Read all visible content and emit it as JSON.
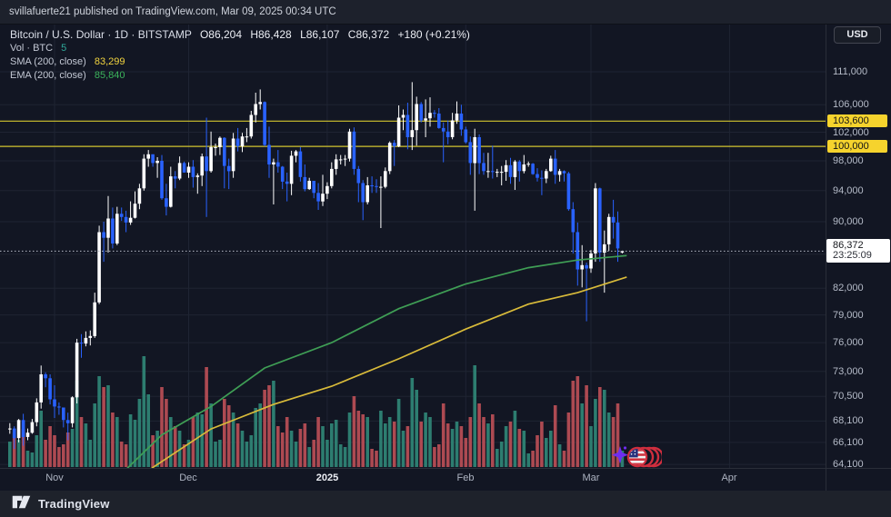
{
  "published_bar": {
    "text": "svillafuerte21 published on TradingView.com, Mar 09, 2025 00:34 UTC"
  },
  "legend": {
    "symbol_line": "Bitcoin / U.S. Dollar · 1D · BITSTAMP",
    "ohlc": {
      "open": "O86,204",
      "high": "H86,428",
      "low": "L86,107",
      "close": "C86,372",
      "change": "+180 (+0.21%)"
    },
    "volume": {
      "label": "Vol · BTC",
      "value": "5"
    },
    "sma": {
      "label": "SMA (200, close)",
      "value": "83,299"
    },
    "ema": {
      "label": "EMA (200, close)",
      "value": "85,840"
    }
  },
  "axis": {
    "currency_button": "USD"
  },
  "footer": {
    "brand": "TradingView"
  },
  "sticker": {
    "name": "us-flag-rolling-sticker"
  },
  "colors": {
    "background": "#121623",
    "grid": "#1f2433",
    "axis_border": "#2a2e39",
    "candle_up": "#ffffff",
    "candle_down": "#2962ff",
    "volume_up": "#2d7d70",
    "volume_down": "#ad4a52",
    "sma_line": "#d9bb3a",
    "ema_line": "#3f9e55",
    "level_line": "#d2c42f",
    "level_label_bg": "#f6d32d",
    "last_price_line": "#b8bcc8",
    "last_price_label_bg": "#ffffff"
  },
  "chart_data": {
    "type": "candlestick",
    "title": "Bitcoin / U.S. Dollar",
    "exchange": "BITSTAMP",
    "interval": "1D",
    "log_scale": true,
    "visible_price_range": [
      63800,
      118600
    ],
    "start_date": "2024-10-22",
    "end_date": "2025-03-08",
    "y_ticks": [
      {
        "label": "111,000",
        "price": 111000,
        "style": "normal"
      },
      {
        "label": "106,000",
        "price": 106000,
        "style": "normal"
      },
      {
        "label": "103,600",
        "price": 103600,
        "style": "level"
      },
      {
        "label": "102,000",
        "price": 102000,
        "style": "normal"
      },
      {
        "label": "100,000",
        "price": 100000,
        "style": "level"
      },
      {
        "label": "98,000",
        "price": 98000,
        "style": "normal"
      },
      {
        "label": "94,000",
        "price": 94000,
        "style": "normal"
      },
      {
        "label": "90,000",
        "price": 90000,
        "style": "normal"
      },
      {
        "label": "82,000",
        "price": 82000,
        "style": "normal"
      },
      {
        "label": "79,000",
        "price": 79000,
        "style": "normal"
      },
      {
        "label": "76,000",
        "price": 76000,
        "style": "normal"
      },
      {
        "label": "73,000",
        "price": 73000,
        "style": "normal"
      },
      {
        "label": "70,500",
        "price": 70500,
        "style": "normal"
      },
      {
        "label": "68,100",
        "price": 68100,
        "style": "normal"
      },
      {
        "label": "66,100",
        "price": 66100,
        "style": "normal"
      },
      {
        "label": "64,100",
        "price": 64100,
        "style": "normal"
      }
    ],
    "gridline_prices": [
      111000,
      106000,
      102000,
      98000,
      94000,
      90000,
      86000,
      82000,
      79000,
      76000,
      73000,
      70500,
      68100,
      66100,
      64100
    ],
    "x_months": [
      {
        "label": "Nov",
        "day_index": 10,
        "bold": false
      },
      {
        "label": "Dec",
        "day_index": 40,
        "bold": false
      },
      {
        "label": "2025",
        "day_index": 71,
        "bold": true
      },
      {
        "label": "Feb",
        "day_index": 102,
        "bold": false
      },
      {
        "label": "Mar",
        "day_index": 130,
        "bold": false
      },
      {
        "label": "Apr",
        "day_index": 161,
        "bold": false
      }
    ],
    "levels": [
      {
        "price": 103600,
        "label": "103,600"
      },
      {
        "price": 100000,
        "label": "100,000"
      }
    ],
    "last_price": {
      "price": 86372,
      "label": "86,372",
      "countdown": "23:25:09"
    },
    "sma_points": [
      [
        25,
        62000
      ],
      [
        45,
        67350
      ],
      [
        59,
        69700
      ],
      [
        72,
        71500
      ],
      [
        87,
        74300
      ],
      [
        102,
        77450
      ],
      [
        116,
        80200
      ],
      [
        127,
        81500
      ],
      [
        138,
        83299
      ]
    ],
    "ema_points": [
      [
        23,
        62500
      ],
      [
        34,
        66800
      ],
      [
        45,
        69500
      ],
      [
        57,
        73350
      ],
      [
        72,
        76000
      ],
      [
        87,
        79700
      ],
      [
        102,
        82500
      ],
      [
        116,
        84400
      ],
      [
        127,
        85300
      ],
      [
        138,
        85840
      ]
    ],
    "candles": [
      [
        67400,
        67900,
        66900,
        67400,
        28
      ],
      [
        67400,
        67600,
        65500,
        66500,
        38
      ],
      [
        66500,
        68300,
        66100,
        68200,
        30
      ],
      [
        68200,
        68800,
        65800,
        66600,
        42
      ],
      [
        66600,
        67400,
        66300,
        67000,
        18
      ],
      [
        67000,
        68300,
        66900,
        68000,
        16
      ],
      [
        68000,
        70300,
        67600,
        69900,
        35
      ],
      [
        69900,
        73600,
        69300,
        72700,
        62
      ],
      [
        72700,
        72900,
        71400,
        72300,
        30
      ],
      [
        72300,
        72700,
        69700,
        70200,
        45
      ],
      [
        70200,
        71600,
        68400,
        69500,
        35
      ],
      [
        69500,
        69900,
        68700,
        69400,
        22
      ],
      [
        69400,
        69400,
        67500,
        68200,
        25
      ],
      [
        68200,
        68900,
        66300,
        67900,
        38
      ],
      [
        67900,
        70500,
        67500,
        70400,
        42
      ],
      [
        70400,
        76400,
        69800,
        76000,
        95
      ],
      [
        76000,
        76900,
        74400,
        75900,
        55
      ],
      [
        75900,
        77200,
        75600,
        76500,
        48
      ],
      [
        76500,
        77300,
        75700,
        76700,
        30
      ],
      [
        76700,
        81500,
        76500,
        80400,
        70
      ],
      [
        80400,
        89500,
        80200,
        88700,
        100
      ],
      [
        88700,
        90000,
        85100,
        88000,
        88
      ],
      [
        88000,
        93300,
        86200,
        90400,
        90
      ],
      [
        90400,
        91800,
        86700,
        87300,
        60
      ],
      [
        87300,
        91900,
        87100,
        91000,
        55
      ],
      [
        91000,
        91800,
        90100,
        90600,
        28
      ],
      [
        90600,
        91400,
        88700,
        89900,
        25
      ],
      [
        89900,
        92600,
        89600,
        90500,
        58
      ],
      [
        90500,
        93900,
        90400,
        92300,
        52
      ],
      [
        92300,
        94900,
        91600,
        94300,
        75
      ],
      [
        94300,
        98900,
        94000,
        98300,
        122
      ],
      [
        98300,
        99500,
        97200,
        98900,
        80
      ],
      [
        98900,
        98900,
        97200,
        97700,
        35
      ],
      [
        97700,
        98500,
        95700,
        98000,
        40
      ],
      [
        98000,
        98800,
        92800,
        93000,
        88
      ],
      [
        93000,
        94900,
        90800,
        91900,
        75
      ],
      [
        91900,
        97200,
        91800,
        95900,
        55
      ],
      [
        95900,
        96600,
        94300,
        95600,
        45
      ],
      [
        95600,
        98600,
        95400,
        97700,
        40
      ],
      [
        97700,
        97900,
        96400,
        96400,
        25
      ],
      [
        96400,
        97800,
        95700,
        97200,
        30
      ],
      [
        97200,
        98100,
        94400,
        95800,
        55
      ],
      [
        95800,
        96300,
        93600,
        96000,
        60
      ],
      [
        96000,
        99000,
        94600,
        98600,
        58
      ],
      [
        98600,
        104100,
        90600,
        96600,
        110
      ],
      [
        96600,
        102100,
        96400,
        99900,
        70
      ],
      [
        99900,
        100400,
        98700,
        99900,
        28
      ],
      [
        99900,
        101400,
        98800,
        101200,
        30
      ],
      [
        101200,
        101300,
        94300,
        97300,
        75
      ],
      [
        97300,
        98300,
        94200,
        96600,
        68
      ],
      [
        96600,
        101900,
        95700,
        101100,
        60
      ],
      [
        101100,
        102600,
        99300,
        100000,
        48
      ],
      [
        100000,
        101900,
        99200,
        101400,
        40
      ],
      [
        101400,
        102600,
        100600,
        101400,
        28
      ],
      [
        101400,
        105100,
        101100,
        104500,
        35
      ],
      [
        104500,
        107800,
        103400,
        106100,
        65
      ],
      [
        106100,
        108300,
        105300,
        106400,
        70
      ],
      [
        106400,
        106500,
        100000,
        100200,
        85
      ],
      [
        100200,
        102800,
        95700,
        97500,
        90
      ],
      [
        97500,
        98300,
        92200,
        97800,
        95
      ],
      [
        97800,
        99500,
        96400,
        97200,
        45
      ],
      [
        97200,
        97300,
        94200,
        95200,
        38
      ],
      [
        95200,
        96400,
        92600,
        94900,
        55
      ],
      [
        94900,
        99400,
        93400,
        98700,
        40
      ],
      [
        98700,
        99500,
        97800,
        99300,
        28
      ],
      [
        99300,
        99900,
        95200,
        95800,
        42
      ],
      [
        95800,
        97500,
        93900,
        94200,
        48
      ],
      [
        94200,
        95700,
        94100,
        95300,
        22
      ],
      [
        95300,
        95300,
        93000,
        93700,
        30
      ],
      [
        93700,
        95000,
        91500,
        92600,
        55
      ],
      [
        92600,
        96100,
        92000,
        93600,
        45
      ],
      [
        93600,
        95100,
        92900,
        94600,
        30
      ],
      [
        94600,
        97800,
        94300,
        96900,
        48
      ],
      [
        96900,
        98900,
        96100,
        98200,
        52
      ],
      [
        98200,
        98800,
        97500,
        98200,
        25
      ],
      [
        98200,
        98800,
        97300,
        98300,
        22
      ],
      [
        98300,
        102500,
        97900,
        102100,
        60
      ],
      [
        102100,
        102700,
        96100,
        96900,
        78
      ],
      [
        96900,
        97300,
        92500,
        95000,
        62
      ],
      [
        95000,
        95400,
        90200,
        92500,
        58
      ],
      [
        92500,
        95800,
        92200,
        94700,
        55
      ],
      [
        94700,
        95900,
        93700,
        94600,
        20
      ],
      [
        94600,
        95500,
        93700,
        94500,
        18
      ],
      [
        94500,
        95900,
        89200,
        94500,
        62
      ],
      [
        94500,
        97100,
        94300,
        96600,
        48
      ],
      [
        96600,
        100700,
        96200,
        100500,
        55
      ],
      [
        100500,
        100900,
        97300,
        100000,
        50
      ],
      [
        100000,
        105900,
        99900,
        104100,
        75
      ],
      [
        104100,
        105300,
        102300,
        104500,
        40
      ],
      [
        104500,
        106300,
        99600,
        101300,
        45
      ],
      [
        101300,
        109400,
        99500,
        102300,
        98
      ],
      [
        102300,
        107200,
        100100,
        106100,
        85
      ],
      [
        106100,
        106400,
        103400,
        103700,
        50
      ],
      [
        103700,
        106800,
        101300,
        104000,
        60
      ],
      [
        104000,
        107100,
        102800,
        104800,
        55
      ],
      [
        104800,
        105200,
        104100,
        104700,
        22
      ],
      [
        104700,
        105500,
        102500,
        102600,
        25
      ],
      [
        102600,
        103400,
        97800,
        102100,
        70
      ],
      [
        102100,
        103700,
        100300,
        101300,
        48
      ],
      [
        101300,
        104800,
        101000,
        103700,
        42
      ],
      [
        103700,
        106500,
        103200,
        104700,
        50
      ],
      [
        104700,
        106000,
        101500,
        102400,
        45
      ],
      [
        102400,
        102800,
        100400,
        100600,
        32
      ],
      [
        100600,
        101400,
        96100,
        97700,
        55
      ],
      [
        97700,
        102500,
        91400,
        101300,
        112
      ],
      [
        101300,
        101700,
        96200,
        97700,
        70
      ],
      [
        97700,
        99100,
        96100,
        96600,
        55
      ],
      [
        96600,
        99100,
        95700,
        96600,
        48
      ],
      [
        96600,
        100100,
        95600,
        96500,
        58
      ],
      [
        96500,
        96900,
        95800,
        96500,
        20
      ],
      [
        96500,
        97300,
        94700,
        96500,
        28
      ],
      [
        96500,
        98100,
        95300,
        97400,
        45
      ],
      [
        97400,
        98400,
        94900,
        95800,
        50
      ],
      [
        95800,
        98100,
        94100,
        97900,
        62
      ],
      [
        97900,
        98100,
        95200,
        96600,
        42
      ],
      [
        96600,
        98800,
        96300,
        97500,
        40
      ],
      [
        97500,
        97900,
        97200,
        97600,
        15
      ],
      [
        97600,
        97700,
        96100,
        96200,
        18
      ],
      [
        96200,
        97000,
        95200,
        95700,
        35
      ],
      [
        95700,
        96700,
        93400,
        95600,
        50
      ],
      [
        95600,
        96900,
        95000,
        96600,
        32
      ],
      [
        96600,
        98700,
        96500,
        98300,
        40
      ],
      [
        98300,
        99500,
        94900,
        96100,
        68
      ],
      [
        96100,
        96900,
        95200,
        96600,
        25
      ],
      [
        96600,
        96700,
        95200,
        96300,
        18
      ],
      [
        96300,
        96500,
        91400,
        91600,
        60
      ],
      [
        91600,
        92500,
        86100,
        88700,
        95
      ],
      [
        88700,
        89900,
        82300,
        84200,
        100
      ],
      [
        84200,
        87100,
        82100,
        84700,
        70
      ],
      [
        84700,
        85000,
        78300,
        84300,
        90
      ],
      [
        84300,
        86500,
        83800,
        86100,
        45
      ],
      [
        86100,
        95000,
        85100,
        94300,
        75
      ],
      [
        94300,
        94400,
        85100,
        86200,
        88
      ],
      [
        86200,
        88900,
        81500,
        87200,
        85
      ],
      [
        87200,
        91000,
        86400,
        90600,
        60
      ],
      [
        90600,
        92800,
        87900,
        89900,
        55
      ],
      [
        89900,
        91300,
        85100,
        86700,
        70
      ],
      [
        86204,
        86428,
        86107,
        86372,
        18
      ]
    ]
  }
}
